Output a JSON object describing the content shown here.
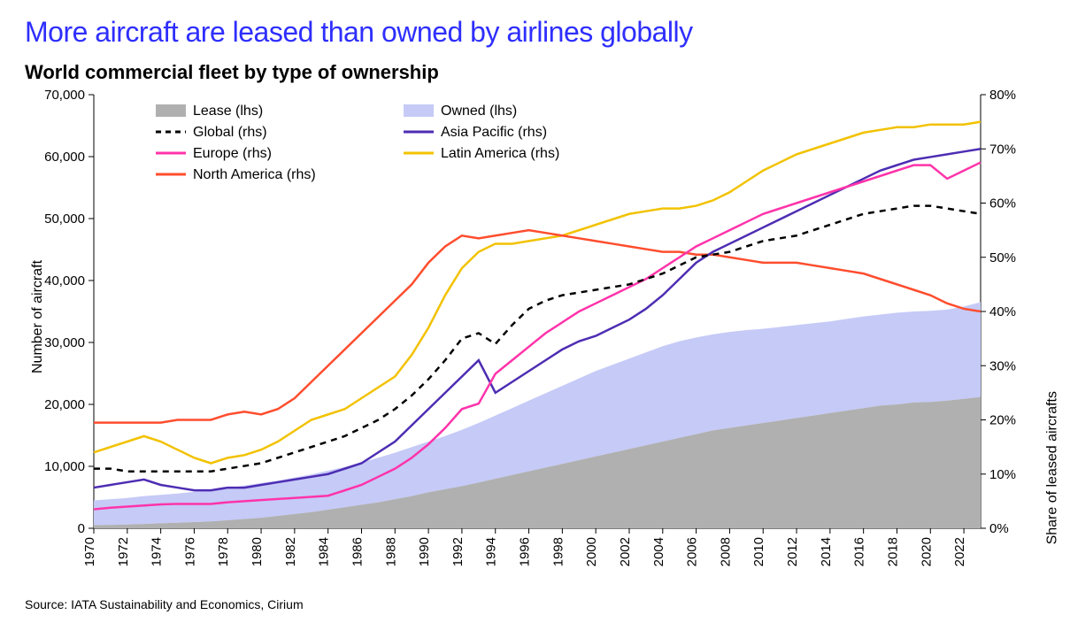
{
  "title": "More aircraft are leased than owned by airlines globally",
  "title_color": "#2e2eff",
  "title_fontsize": 32,
  "subtitle": "World commercial fleet by type of ownership",
  "subtitle_fontsize": 22,
  "source": "Source: IATA Sustainability and Economics, Cirium",
  "chart": {
    "type": "dual-axis-area-line",
    "background_color": "#ffffff",
    "border_color": "#000000",
    "left_axis": {
      "label": "Number of aircraft",
      "min": 0,
      "max": 70000,
      "tick_step": 10000,
      "tick_format": "comma"
    },
    "right_axis": {
      "label": "Share of leased aircrafts",
      "min": 0,
      "max": 80,
      "tick_step": 10,
      "tick_format": "percent"
    },
    "x_axis": {
      "min": 1970,
      "max": 2023,
      "tick_start": 1970,
      "tick_step": 2,
      "tick_rotate": -90
    },
    "legend": {
      "position": "top-inside",
      "columns": 2,
      "items": [
        {
          "key": "lease",
          "label": "Lease (lhs)"
        },
        {
          "key": "owned",
          "label": "Owned (lhs)"
        },
        {
          "key": "global",
          "label": "Global (rhs)"
        },
        {
          "key": "asiapacific",
          "label": "Asia Pacific (rhs)"
        },
        {
          "key": "europe",
          "label": "Europe (rhs)"
        },
        {
          "key": "latam",
          "label": "Latin America (rhs)"
        },
        {
          "key": "namerica",
          "label": "North America (rhs)"
        }
      ]
    },
    "series_style": {
      "lease": {
        "type": "area",
        "color": "#b0b0b0",
        "opacity": 1.0,
        "stroke_width": 0
      },
      "owned": {
        "type": "area",
        "color": "#c5caf7",
        "opacity": 1.0,
        "stroke_width": 0
      },
      "global": {
        "type": "line",
        "color": "#000000",
        "stroke_width": 2.5,
        "dash": "7,6"
      },
      "asiapacific": {
        "type": "line",
        "color": "#4d2db3",
        "stroke_width": 2.5
      },
      "europe": {
        "type": "line",
        "color": "#ff33aa",
        "stroke_width": 2.5
      },
      "latam": {
        "type": "line",
        "color": "#f2c200",
        "stroke_width": 2.5
      },
      "namerica": {
        "type": "line",
        "color": "#ff4d2e",
        "stroke_width": 2.5
      }
    },
    "years": [
      1970,
      1971,
      1972,
      1973,
      1974,
      1975,
      1976,
      1977,
      1978,
      1979,
      1980,
      1981,
      1982,
      1983,
      1984,
      1985,
      1986,
      1987,
      1988,
      1989,
      1990,
      1991,
      1992,
      1993,
      1994,
      1995,
      1996,
      1997,
      1998,
      1999,
      2000,
      2001,
      2002,
      2003,
      2004,
      2005,
      2006,
      2007,
      2008,
      2009,
      2010,
      2011,
      2012,
      2013,
      2014,
      2015,
      2016,
      2017,
      2018,
      2019,
      2020,
      2021,
      2022,
      2023
    ],
    "lease_lhs": [
      500,
      550,
      600,
      700,
      800,
      900,
      1000,
      1100,
      1300,
      1500,
      1700,
      2000,
      2300,
      2600,
      3000,
      3400,
      3800,
      4200,
      4700,
      5200,
      5800,
      6300,
      6800,
      7400,
      8000,
      8600,
      9200,
      9800,
      10400,
      11000,
      11600,
      12200,
      12800,
      13400,
      14000,
      14600,
      15200,
      15800,
      16200,
      16600,
      17000,
      17400,
      17800,
      18200,
      18600,
      19000,
      19400,
      19800,
      20000,
      20300,
      20400,
      20600,
      20900,
      21200
    ],
    "fleet_total_lhs": [
      4500,
      4700,
      4900,
      5200,
      5400,
      5600,
      5900,
      6200,
      6500,
      6900,
      7300,
      7700,
      8200,
      8700,
      9300,
      9900,
      10600,
      11400,
      12200,
      13100,
      14000,
      14900,
      15900,
      17000,
      18200,
      19400,
      20600,
      21800,
      23000,
      24200,
      25400,
      26400,
      27400,
      28400,
      29400,
      30200,
      30800,
      31300,
      31700,
      32000,
      32200,
      32500,
      32800,
      33100,
      33400,
      33800,
      34200,
      34500,
      34800,
      35000,
      35100,
      35300,
      35800,
      36500
    ],
    "global_rhs": [
      11.0,
      11.0,
      10.5,
      10.5,
      10.5,
      10.5,
      10.5,
      10.5,
      11.0,
      11.5,
      12.0,
      13.0,
      14.0,
      15.0,
      16.0,
      17.0,
      18.5,
      20.0,
      22.0,
      24.5,
      27.5,
      31.0,
      35.0,
      36.0,
      34.0,
      37.5,
      40.5,
      42.0,
      43.0,
      43.5,
      44.0,
      44.5,
      45.0,
      46.0,
      47.0,
      48.5,
      50.0,
      50.5,
      51.0,
      52.0,
      53.0,
      53.5,
      54.0,
      55.0,
      56.0,
      57.0,
      58.0,
      58.5,
      59.0,
      59.5,
      59.5,
      59.0,
      58.5,
      58.0
    ],
    "asiapacific_rhs": [
      7.5,
      8.0,
      8.5,
      9.0,
      8.0,
      7.5,
      7.0,
      7.0,
      7.5,
      7.5,
      8.0,
      8.5,
      9.0,
      9.5,
      10.0,
      11.0,
      12.0,
      14.0,
      16.0,
      19.0,
      22.0,
      25.0,
      28.0,
      31.0,
      25.0,
      27.0,
      29.0,
      31.0,
      33.0,
      34.5,
      35.5,
      37.0,
      38.5,
      40.5,
      43.0,
      46.0,
      49.0,
      51.0,
      52.5,
      54.0,
      55.5,
      57.0,
      58.5,
      60.0,
      61.5,
      63.0,
      64.5,
      66.0,
      67.0,
      68.0,
      68.5,
      69.0,
      69.5,
      70.0
    ],
    "europe_rhs": [
      3.5,
      3.8,
      4.0,
      4.2,
      4.4,
      4.5,
      4.5,
      4.5,
      4.8,
      5.0,
      5.2,
      5.4,
      5.6,
      5.8,
      6.0,
      7.0,
      8.0,
      9.5,
      11.0,
      13.0,
      15.5,
      18.5,
      22.0,
      23.0,
      28.5,
      31.0,
      33.5,
      36.0,
      38.0,
      40.0,
      41.5,
      43.0,
      44.5,
      46.0,
      48.0,
      50.0,
      52.0,
      53.5,
      55.0,
      56.5,
      58.0,
      59.0,
      60.0,
      61.0,
      62.0,
      63.0,
      64.0,
      65.0,
      66.0,
      67.0,
      67.0,
      64.5,
      66.0,
      67.5
    ],
    "latam_rhs": [
      14.0,
      15.0,
      16.0,
      17.0,
      16.0,
      14.5,
      13.0,
      12.0,
      13.0,
      13.5,
      14.5,
      16.0,
      18.0,
      20.0,
      21.0,
      22.0,
      24.0,
      26.0,
      28.0,
      32.0,
      37.0,
      43.0,
      48.0,
      51.0,
      52.5,
      52.5,
      53.0,
      53.5,
      54.0,
      55.0,
      56.0,
      57.0,
      58.0,
      58.5,
      59.0,
      59.0,
      59.5,
      60.5,
      62.0,
      64.0,
      66.0,
      67.5,
      69.0,
      70.0,
      71.0,
      72.0,
      73.0,
      73.5,
      74.0,
      74.0,
      74.5,
      74.5,
      74.5,
      75.0
    ],
    "namerica_rhs": [
      19.5,
      19.5,
      19.5,
      19.5,
      19.5,
      20.0,
      20.0,
      20.0,
      21.0,
      21.5,
      21.0,
      22.0,
      24.0,
      27.0,
      30.0,
      33.0,
      36.0,
      39.0,
      42.0,
      45.0,
      49.0,
      52.0,
      54.0,
      53.5,
      54.0,
      54.5,
      55.0,
      54.5,
      54.0,
      53.5,
      53.0,
      52.5,
      52.0,
      51.5,
      51.0,
      51.0,
      50.5,
      50.5,
      50.0,
      49.5,
      49.0,
      49.0,
      49.0,
      48.5,
      48.0,
      47.5,
      47.0,
      46.0,
      45.0,
      44.0,
      43.0,
      41.5,
      40.5,
      40.0
    ]
  }
}
